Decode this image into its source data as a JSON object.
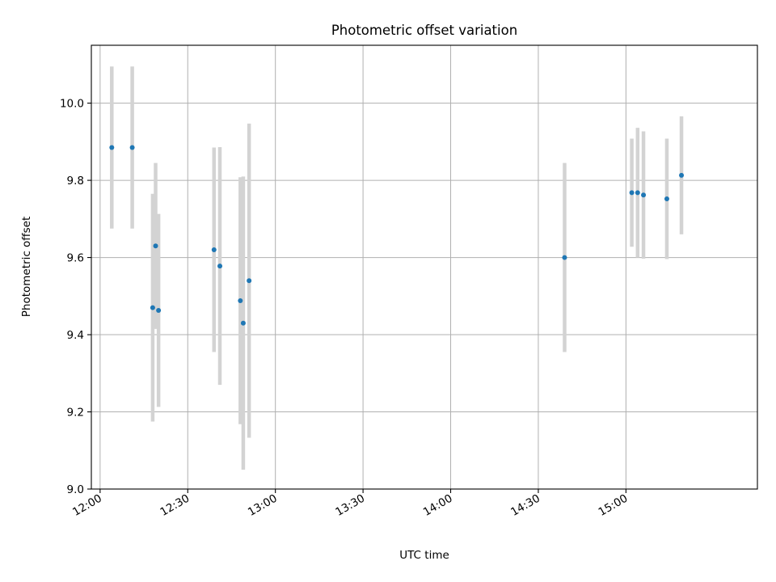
{
  "chart_data": {
    "type": "scatter",
    "title": "Photometric offset variation",
    "xlabel": "UTC time",
    "ylabel": "Photometric offset",
    "x_tick_labels": [
      "12:00",
      "12:30",
      "13:00",
      "13:30",
      "14:00",
      "14:30",
      "15:00"
    ],
    "y_tick_labels": [
      "9.0",
      "9.2",
      "9.4",
      "9.6",
      "9.8",
      "10.0"
    ],
    "xlim": [
      "11:57",
      "15:45"
    ],
    "ylim": [
      9.0,
      10.15
    ],
    "grid": true,
    "marker_color": "#1f77b4",
    "errorbar_color": "#d3d3d3",
    "points": [
      {
        "x": "12:04",
        "y": 9.885,
        "yerr": 0.21
      },
      {
        "x": "12:11",
        "y": 9.885,
        "yerr": 0.21
      },
      {
        "x": "12:18",
        "y": 9.47,
        "yerr": 0.295
      },
      {
        "x": "12:19",
        "y": 9.63,
        "yerr": 0.215
      },
      {
        "x": "12:20",
        "y": 9.463,
        "yerr": 0.25
      },
      {
        "x": "12:39",
        "y": 9.62,
        "yerr": 0.265
      },
      {
        "x": "12:41",
        "y": 9.578,
        "yerr": 0.308
      },
      {
        "x": "12:48",
        "y": 9.488,
        "yerr": 0.32
      },
      {
        "x": "12:49",
        "y": 9.43,
        "yerr": 0.38
      },
      {
        "x": "12:51",
        "y": 9.54,
        "yerr": 0.407
      },
      {
        "x": "14:39",
        "y": 9.6,
        "yerr": 0.245
      },
      {
        "x": "15:02",
        "y": 9.768,
        "yerr": 0.14
      },
      {
        "x": "15:04",
        "y": 9.768,
        "yerr": 0.168
      },
      {
        "x": "15:06",
        "y": 9.762,
        "yerr": 0.165
      },
      {
        "x": "15:14",
        "y": 9.752,
        "yerr": 0.156
      },
      {
        "x": "15:19",
        "y": 9.813,
        "yerr": 0.153
      }
    ]
  }
}
